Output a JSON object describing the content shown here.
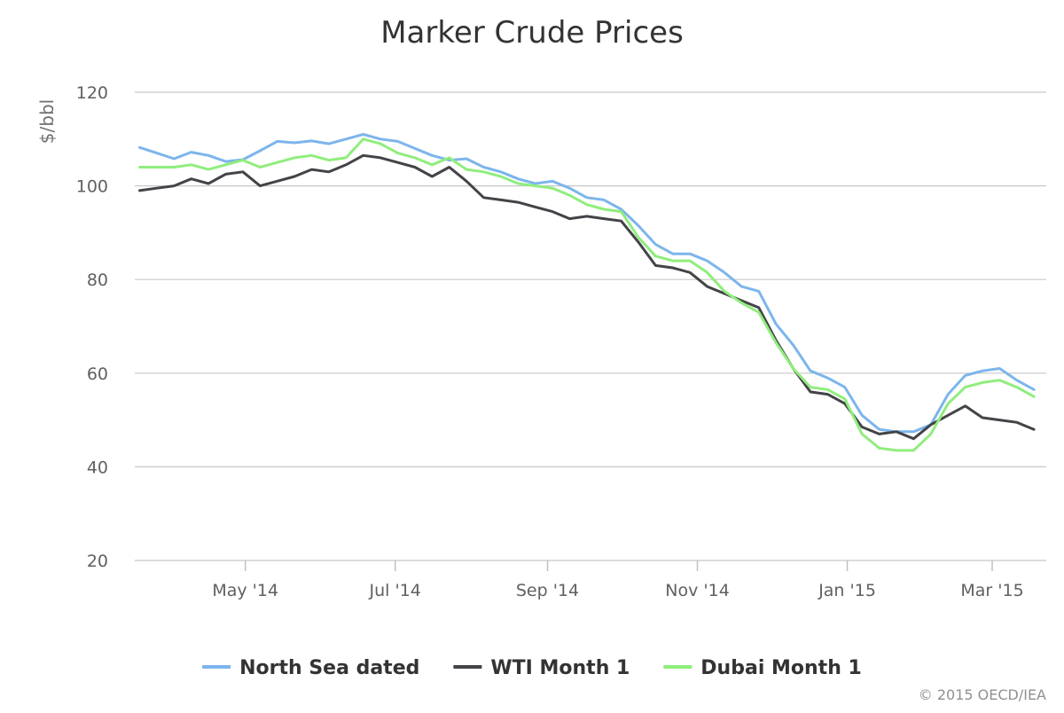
{
  "chart_data": {
    "type": "line",
    "title": "Marker Crude Prices",
    "ylabel": "$/bbl",
    "xlabel": "",
    "ylim": [
      20,
      120
    ],
    "yticks": [
      "20",
      "40",
      "60",
      "80",
      "100",
      "120"
    ],
    "x_range": [
      "2014-03-17",
      "2015-03-23"
    ],
    "xticks": [
      {
        "date": "2014-05-01",
        "label": "May '14"
      },
      {
        "date": "2014-07-01",
        "label": "Jul '14"
      },
      {
        "date": "2014-09-01",
        "label": "Sep '14"
      },
      {
        "date": "2014-11-01",
        "label": "Nov '14"
      },
      {
        "date": "2015-01-01",
        "label": "Jan '15"
      },
      {
        "date": "2015-03-01",
        "label": "Mar '15"
      }
    ],
    "grid": true,
    "legend_position": "bottom",
    "credit": "© 2015 OECD/IEA",
    "series": [
      {
        "name": "North Sea dated",
        "color": "#7cb5ec",
        "points": [
          [
            "2014-03-19",
            108.2
          ],
          [
            "2014-03-26",
            107.0
          ],
          [
            "2014-04-02",
            105.8
          ],
          [
            "2014-04-09",
            107.2
          ],
          [
            "2014-04-16",
            106.5
          ],
          [
            "2014-04-23",
            105.2
          ],
          [
            "2014-04-30",
            105.6
          ],
          [
            "2014-05-07",
            107.5
          ],
          [
            "2014-05-14",
            109.5
          ],
          [
            "2014-05-21",
            109.2
          ],
          [
            "2014-05-28",
            109.6
          ],
          [
            "2014-06-04",
            109.0
          ],
          [
            "2014-06-11",
            110.0
          ],
          [
            "2014-06-18",
            111.0
          ],
          [
            "2014-06-25",
            110.0
          ],
          [
            "2014-07-02",
            109.5
          ],
          [
            "2014-07-09",
            108.0
          ],
          [
            "2014-07-16",
            106.5
          ],
          [
            "2014-07-23",
            105.5
          ],
          [
            "2014-07-30",
            105.8
          ],
          [
            "2014-08-06",
            104.0
          ],
          [
            "2014-08-13",
            103.0
          ],
          [
            "2014-08-20",
            101.5
          ],
          [
            "2014-08-27",
            100.5
          ],
          [
            "2014-09-03",
            101.0
          ],
          [
            "2014-09-10",
            99.5
          ],
          [
            "2014-09-17",
            97.5
          ],
          [
            "2014-09-24",
            97.0
          ],
          [
            "2014-10-01",
            95.0
          ],
          [
            "2014-10-08",
            91.5
          ],
          [
            "2014-10-15",
            87.5
          ],
          [
            "2014-10-22",
            85.5
          ],
          [
            "2014-10-29",
            85.5
          ],
          [
            "2014-11-05",
            84.0
          ],
          [
            "2014-11-12",
            81.5
          ],
          [
            "2014-11-19",
            78.5
          ],
          [
            "2014-11-26",
            77.5
          ],
          [
            "2014-12-03",
            70.5
          ],
          [
            "2014-12-10",
            66.0
          ],
          [
            "2014-12-17",
            60.5
          ],
          [
            "2014-12-24",
            59.0
          ],
          [
            "2014-12-31",
            57.0
          ],
          [
            "2015-01-07",
            51.0
          ],
          [
            "2015-01-14",
            48.0
          ],
          [
            "2015-01-21",
            47.5
          ],
          [
            "2015-01-28",
            47.5
          ],
          [
            "2015-02-04",
            49.0
          ],
          [
            "2015-02-11",
            55.5
          ],
          [
            "2015-02-18",
            59.5
          ],
          [
            "2015-02-25",
            60.5
          ],
          [
            "2015-03-04",
            61.0
          ],
          [
            "2015-03-11",
            58.5
          ],
          [
            "2015-03-18",
            56.5
          ]
        ]
      },
      {
        "name": "WTI Month 1",
        "color": "#434348",
        "points": [
          [
            "2014-03-19",
            99.0
          ],
          [
            "2014-03-26",
            99.5
          ],
          [
            "2014-04-02",
            100.0
          ],
          [
            "2014-04-09",
            101.5
          ],
          [
            "2014-04-16",
            100.5
          ],
          [
            "2014-04-23",
            102.5
          ],
          [
            "2014-04-30",
            103.0
          ],
          [
            "2014-05-07",
            100.0
          ],
          [
            "2014-05-14",
            101.0
          ],
          [
            "2014-05-21",
            102.0
          ],
          [
            "2014-05-28",
            103.5
          ],
          [
            "2014-06-04",
            103.0
          ],
          [
            "2014-06-11",
            104.5
          ],
          [
            "2014-06-18",
            106.5
          ],
          [
            "2014-06-25",
            106.0
          ],
          [
            "2014-07-02",
            105.0
          ],
          [
            "2014-07-09",
            104.0
          ],
          [
            "2014-07-16",
            102.0
          ],
          [
            "2014-07-23",
            104.0
          ],
          [
            "2014-07-30",
            101.0
          ],
          [
            "2014-08-06",
            97.5
          ],
          [
            "2014-08-13",
            97.0
          ],
          [
            "2014-08-20",
            96.5
          ],
          [
            "2014-08-27",
            95.5
          ],
          [
            "2014-09-03",
            94.5
          ],
          [
            "2014-09-10",
            93.0
          ],
          [
            "2014-09-17",
            93.5
          ],
          [
            "2014-09-24",
            93.0
          ],
          [
            "2014-10-01",
            92.5
          ],
          [
            "2014-10-08",
            88.0
          ],
          [
            "2014-10-15",
            83.0
          ],
          [
            "2014-10-22",
            82.5
          ],
          [
            "2014-10-29",
            81.5
          ],
          [
            "2014-11-05",
            78.5
          ],
          [
            "2014-11-12",
            77.0
          ],
          [
            "2014-11-19",
            75.5
          ],
          [
            "2014-11-26",
            74.0
          ],
          [
            "2014-12-03",
            67.0
          ],
          [
            "2014-12-10",
            61.0
          ],
          [
            "2014-12-17",
            56.0
          ],
          [
            "2014-12-24",
            55.5
          ],
          [
            "2014-12-31",
            53.5
          ],
          [
            "2015-01-07",
            48.5
          ],
          [
            "2015-01-14",
            47.0
          ],
          [
            "2015-01-21",
            47.5
          ],
          [
            "2015-01-28",
            46.0
          ],
          [
            "2015-02-04",
            49.0
          ],
          [
            "2015-02-11",
            51.0
          ],
          [
            "2015-02-18",
            53.0
          ],
          [
            "2015-02-25",
            50.5
          ],
          [
            "2015-03-04",
            50.0
          ],
          [
            "2015-03-11",
            49.5
          ],
          [
            "2015-03-18",
            48.0
          ]
        ]
      },
      {
        "name": "Dubai Month 1",
        "color": "#90ed7d",
        "points": [
          [
            "2014-03-19",
            104.0
          ],
          [
            "2014-03-26",
            104.0
          ],
          [
            "2014-04-02",
            104.0
          ],
          [
            "2014-04-09",
            104.5
          ],
          [
            "2014-04-16",
            103.5
          ],
          [
            "2014-04-23",
            104.5
          ],
          [
            "2014-04-30",
            105.5
          ],
          [
            "2014-05-07",
            104.0
          ],
          [
            "2014-05-14",
            105.0
          ],
          [
            "2014-05-21",
            106.0
          ],
          [
            "2014-05-28",
            106.5
          ],
          [
            "2014-06-04",
            105.5
          ],
          [
            "2014-06-11",
            106.0
          ],
          [
            "2014-06-18",
            110.0
          ],
          [
            "2014-06-25",
            109.0
          ],
          [
            "2014-07-02",
            107.0
          ],
          [
            "2014-07-09",
            106.0
          ],
          [
            "2014-07-16",
            104.5
          ],
          [
            "2014-07-23",
            106.0
          ],
          [
            "2014-07-30",
            103.5
          ],
          [
            "2014-08-06",
            103.0
          ],
          [
            "2014-08-13",
            102.0
          ],
          [
            "2014-08-20",
            100.5
          ],
          [
            "2014-08-27",
            100.0
          ],
          [
            "2014-09-03",
            99.5
          ],
          [
            "2014-09-10",
            98.0
          ],
          [
            "2014-09-17",
            96.0
          ],
          [
            "2014-09-24",
            95.0
          ],
          [
            "2014-10-01",
            94.5
          ],
          [
            "2014-10-08",
            89.0
          ],
          [
            "2014-10-15",
            85.0
          ],
          [
            "2014-10-22",
            84.0
          ],
          [
            "2014-10-29",
            84.0
          ],
          [
            "2014-11-05",
            81.5
          ],
          [
            "2014-11-12",
            77.5
          ],
          [
            "2014-11-19",
            75.0
          ],
          [
            "2014-11-26",
            73.0
          ],
          [
            "2014-12-03",
            66.5
          ],
          [
            "2014-12-10",
            61.0
          ],
          [
            "2014-12-17",
            57.0
          ],
          [
            "2014-12-24",
            56.5
          ],
          [
            "2014-12-31",
            54.5
          ],
          [
            "2015-01-07",
            47.0
          ],
          [
            "2015-01-14",
            44.0
          ],
          [
            "2015-01-21",
            43.5
          ],
          [
            "2015-01-28",
            43.5
          ],
          [
            "2015-02-04",
            47.0
          ],
          [
            "2015-02-11",
            53.5
          ],
          [
            "2015-02-18",
            57.0
          ],
          [
            "2015-02-25",
            58.0
          ],
          [
            "2015-03-04",
            58.5
          ],
          [
            "2015-03-11",
            57.0
          ],
          [
            "2015-03-18",
            55.0
          ]
        ]
      }
    ]
  }
}
